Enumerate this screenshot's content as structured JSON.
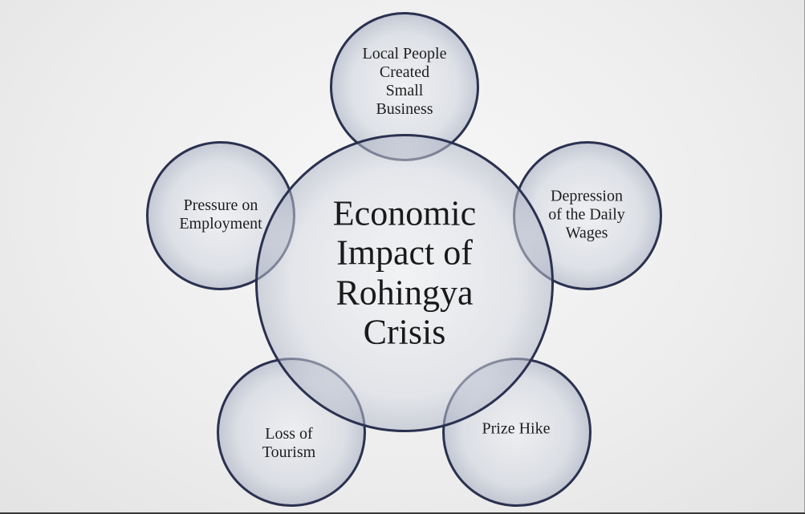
{
  "diagram": {
    "center": {
      "label": "Economic\nImpact of\nRohingya\nCrisis"
    },
    "satellites": [
      {
        "id": "top",
        "label": "Local People\nCreated\nSmall\nBusiness"
      },
      {
        "id": "right",
        "label": "Depression\nof the Daily\nWages"
      },
      {
        "id": "bottom-right",
        "label": "Prize Hike"
      },
      {
        "id": "bottom-left",
        "label": "Loss of\nTourism"
      },
      {
        "id": "left",
        "label": "Pressure on\nEmployment"
      }
    ]
  },
  "colors": {
    "circle_border": "#2b3150",
    "background": "#eeeeee",
    "text": "#1e1e1e"
  }
}
